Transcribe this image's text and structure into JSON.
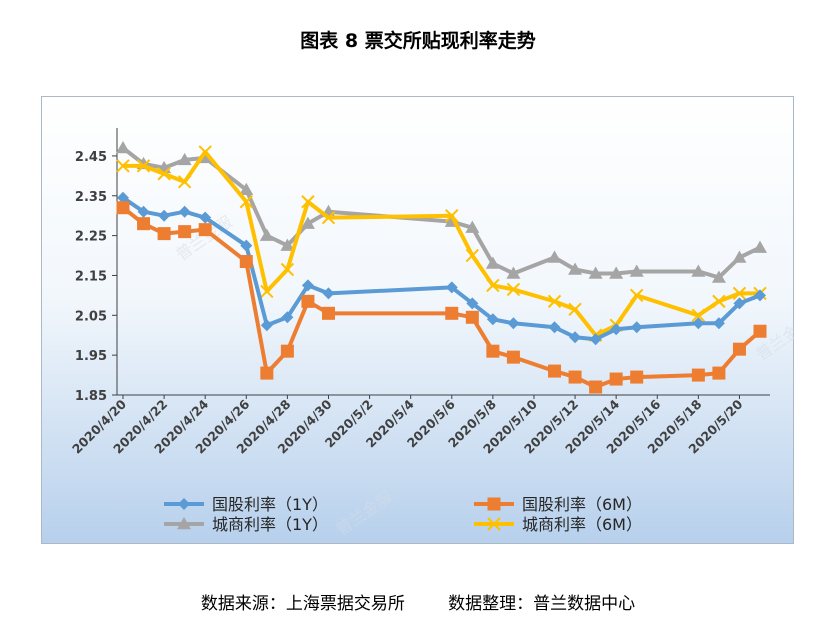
{
  "title": "图表 8  票交所贴现利率走势",
  "source": {
    "left": "数据来源：上海票据交易所",
    "right": "数据整理：普兰数据中心"
  },
  "watermark": "普兰金服",
  "colors": {
    "guogu_1y": "#5b9bd5",
    "guogu_6m": "#ed7d31",
    "chengshang_1y": "#a5a5a5",
    "chengshang_6m": "#ffc000"
  },
  "chart_data": {
    "type": "line",
    "ylim": [
      1.85,
      2.5
    ],
    "yticks": [
      1.85,
      1.95,
      2.05,
      2.15,
      2.25,
      2.35,
      2.45
    ],
    "ytick_labels": [
      "1.85",
      "1.95",
      "2.05",
      "2.15",
      "2.25",
      "2.35",
      "2.45"
    ],
    "xlim": [
      "2020-04-20",
      "2020-05-21"
    ],
    "xtick_labels": [
      "2020/4/20",
      "2020/4/22",
      "2020/4/24",
      "2020/4/26",
      "2020/4/28",
      "2020/4/30",
      "2020/5/2",
      "2020/5/4",
      "2020/5/6",
      "2020/5/8",
      "2020/5/10",
      "2020/5/12",
      "2020/5/14",
      "2020/5/16",
      "2020/5/18",
      "2020/5/20"
    ],
    "legend_position": "bottom",
    "grid": false,
    "series": [
      {
        "name": "国股利率（1Y）",
        "marker": "diamond",
        "x": [
          "2020-04-20",
          "2020-04-21",
          "2020-04-22",
          "2020-04-23",
          "2020-04-24",
          "2020-04-26",
          "2020-04-27",
          "2020-04-28",
          "2020-04-29",
          "2020-04-30",
          "2020-05-06",
          "2020-05-07",
          "2020-05-08",
          "2020-05-09",
          "2020-05-11",
          "2020-05-12",
          "2020-05-13",
          "2020-05-14",
          "2020-05-15",
          "2020-05-18",
          "2020-05-19",
          "2020-05-20",
          "2020-05-21"
        ],
        "values": [
          2.345,
          2.31,
          2.3,
          2.31,
          2.295,
          2.225,
          2.025,
          2.045,
          2.125,
          2.105,
          2.12,
          2.08,
          2.04,
          2.03,
          2.02,
          1.995,
          1.99,
          2.015,
          2.02,
          2.03,
          2.03,
          2.08,
          2.1
        ]
      },
      {
        "name": "国股利率（6M）",
        "marker": "square",
        "x": [
          "2020-04-20",
          "2020-04-21",
          "2020-04-22",
          "2020-04-23",
          "2020-04-24",
          "2020-04-26",
          "2020-04-27",
          "2020-04-28",
          "2020-04-29",
          "2020-04-30",
          "2020-05-06",
          "2020-05-07",
          "2020-05-08",
          "2020-05-09",
          "2020-05-11",
          "2020-05-12",
          "2020-05-13",
          "2020-05-14",
          "2020-05-15",
          "2020-05-18",
          "2020-05-19",
          "2020-05-20",
          "2020-05-21"
        ],
        "values": [
          2.32,
          2.28,
          2.255,
          2.26,
          2.265,
          2.185,
          1.905,
          1.96,
          2.085,
          2.055,
          2.055,
          2.045,
          1.96,
          1.945,
          1.91,
          1.895,
          1.87,
          1.89,
          1.895,
          1.9,
          1.905,
          1.965,
          2.01
        ]
      },
      {
        "name": "城商利率（1Y）",
        "marker": "triangle",
        "x": [
          "2020-04-20",
          "2020-04-21",
          "2020-04-22",
          "2020-04-23",
          "2020-04-24",
          "2020-04-26",
          "2020-04-27",
          "2020-04-28",
          "2020-04-29",
          "2020-04-30",
          "2020-05-06",
          "2020-05-07",
          "2020-05-08",
          "2020-05-09",
          "2020-05-11",
          "2020-05-12",
          "2020-05-13",
          "2020-05-14",
          "2020-05-15",
          "2020-05-18",
          "2020-05-19",
          "2020-05-20",
          "2020-05-21"
        ],
        "values": [
          2.47,
          2.43,
          2.42,
          2.44,
          2.445,
          2.365,
          2.25,
          2.225,
          2.28,
          2.31,
          2.285,
          2.27,
          2.18,
          2.155,
          2.195,
          2.165,
          2.155,
          2.155,
          2.16,
          2.16,
          2.145,
          2.195,
          2.22
        ]
      },
      {
        "name": "城商利率（6M）",
        "marker": "x",
        "x": [
          "2020-04-20",
          "2020-04-21",
          "2020-04-22",
          "2020-04-23",
          "2020-04-24",
          "2020-04-26",
          "2020-04-27",
          "2020-04-28",
          "2020-04-29",
          "2020-04-30",
          "2020-05-06",
          "2020-05-07",
          "2020-05-08",
          "2020-05-09",
          "2020-05-11",
          "2020-05-12",
          "2020-05-13",
          "2020-05-14",
          "2020-05-15",
          "2020-05-18",
          "2020-05-19",
          "2020-05-20",
          "2020-05-21"
        ],
        "values": [
          2.425,
          2.425,
          2.405,
          2.385,
          2.46,
          2.335,
          2.11,
          2.165,
          2.335,
          2.295,
          2.3,
          2.2,
          2.125,
          2.115,
          2.085,
          2.065,
          2.0,
          2.025,
          2.1,
          2.05,
          2.085,
          2.105,
          2.105
        ]
      }
    ]
  }
}
